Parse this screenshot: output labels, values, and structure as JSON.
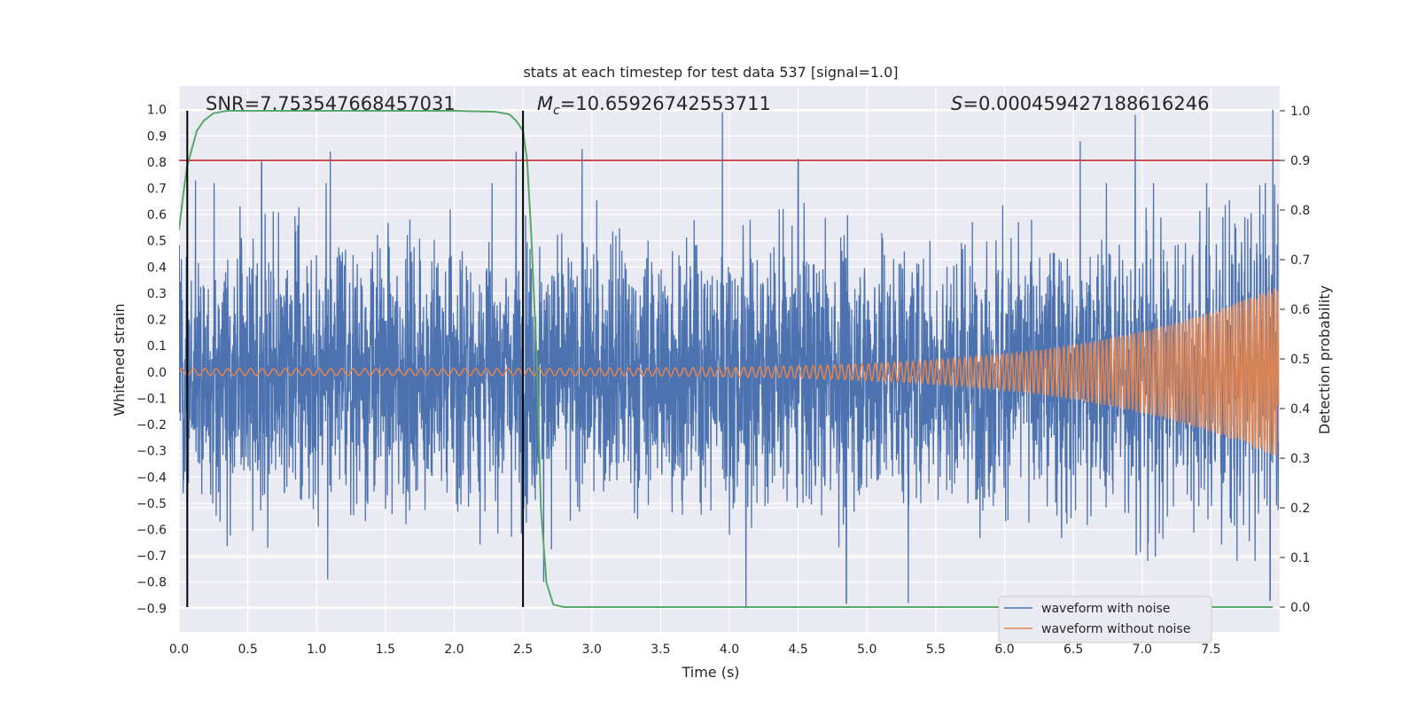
{
  "chart_data": {
    "type": "line",
    "title": "stats at each timestep for test data 537 [signal=1.0]",
    "xlabel": "Time (s)",
    "ylabel": "Whitened strain",
    "ylabel_right": "Detection probability",
    "xlim": [
      0,
      8
    ],
    "ylim": [
      -0.99,
      1.09
    ],
    "ylim_right": [
      -0.05,
      1.05
    ],
    "grid": true,
    "x_ticks": [
      "0.0",
      "0.5",
      "1.0",
      "1.5",
      "2.0",
      "2.5",
      "3.0",
      "3.5",
      "4.0",
      "4.5",
      "5.0",
      "5.5",
      "6.0",
      "6.5",
      "7.0",
      "7.5"
    ],
    "y_ticks": [
      "1.0",
      "0.9",
      "0.8",
      "0.7",
      "0.6",
      "0.5",
      "0.4",
      "0.3",
      "0.2",
      "0.1",
      "0.0",
      "−0.1",
      "−0.2",
      "−0.3",
      "−0.4",
      "−0.5",
      "−0.6",
      "−0.7",
      "−0.8",
      "−0.9"
    ],
    "y_tick_values": [
      1.0,
      0.9,
      0.8,
      0.7,
      0.6,
      0.5,
      0.4,
      0.3,
      0.2,
      0.1,
      0.0,
      -0.1,
      -0.2,
      -0.3,
      -0.4,
      -0.5,
      -0.6,
      -0.7,
      -0.8,
      -0.9
    ],
    "y2_ticks": [
      "1.0",
      "0.9",
      "0.8",
      "0.7",
      "0.6",
      "0.5",
      "0.4",
      "0.3",
      "0.2",
      "0.1",
      "0.0"
    ],
    "y2_tick_values": [
      1.0,
      0.9,
      0.8,
      0.7,
      0.6,
      0.5,
      0.4,
      0.3,
      0.2,
      0.1,
      0.0
    ],
    "annotations": {
      "snr": "SNR=7.753547668457031",
      "mc_symbol": "M",
      "mc_sub": "c",
      "mc_value": "=10.65926742553711",
      "s_symbol": "S",
      "s_value": "=0.000459427188616246"
    },
    "vertical_markers_x": [
      0.06,
      2.5
    ],
    "threshold": {
      "axis": "right",
      "value": 0.9
    },
    "noisy_waveform": {
      "name": "waveform with noise",
      "sampling": "noise, amplitude about 0.6, with occasional spikes",
      "peak_points": [
        [
          0.12,
          0.73
        ],
        [
          0.6,
          0.8
        ],
        [
          1.1,
          0.84
        ],
        [
          2.45,
          0.84
        ],
        [
          2.93,
          0.85
        ],
        [
          3.95,
          0.99
        ],
        [
          4.5,
          0.81
        ],
        [
          6.55,
          0.88
        ],
        [
          6.95,
          0.98
        ],
        [
          7.95,
          1.0
        ]
      ],
      "trough_points": [
        [
          0.06,
          -0.76
        ],
        [
          1.08,
          -0.79
        ],
        [
          2.65,
          -0.8
        ],
        [
          4.12,
          -0.9
        ],
        [
          4.85,
          -0.88
        ],
        [
          5.3,
          -0.88
        ],
        [
          7.93,
          -0.87
        ]
      ]
    },
    "clean_waveform": {
      "name": "waveform without noise",
      "model": "chirp",
      "start_amplitude": 0.013,
      "end_amplitude": 0.32,
      "start_frequency_hz": 12,
      "end_frequency_hz": 48
    },
    "detection_probability": {
      "name": "detection probability",
      "x": [
        0.0,
        0.03,
        0.06,
        0.1,
        0.13,
        0.18,
        0.25,
        0.35,
        0.5,
        1.0,
        1.5,
        2.0,
        2.3,
        2.4,
        2.45,
        2.5,
        2.53,
        2.56,
        2.6,
        2.63,
        2.67,
        2.72,
        2.8,
        3.0,
        4.0,
        6.0,
        7.95
      ],
      "y": [
        0.76,
        0.83,
        0.89,
        0.93,
        0.96,
        0.98,
        0.995,
        1.0,
        1.0,
        1.0,
        1.0,
        1.0,
        0.998,
        0.993,
        0.98,
        0.96,
        0.9,
        0.75,
        0.5,
        0.2,
        0.05,
        0.005,
        0.0,
        0.0,
        0.0,
        0.0,
        0.0
      ]
    },
    "legend": {
      "placement": "lower-right",
      "entries": [
        {
          "label": "waveform with noise",
          "color": "#4c72b0"
        },
        {
          "label": "waveform without noise",
          "color": "#dd8452"
        }
      ]
    },
    "colors": {
      "noisy": "#4c72b0",
      "clean": "#dd8452",
      "probability": "#55a868",
      "threshold": "#c44e52",
      "markers": "#000000",
      "plot_bg": "#eaeaf2",
      "grid": "#ffffff"
    }
  }
}
